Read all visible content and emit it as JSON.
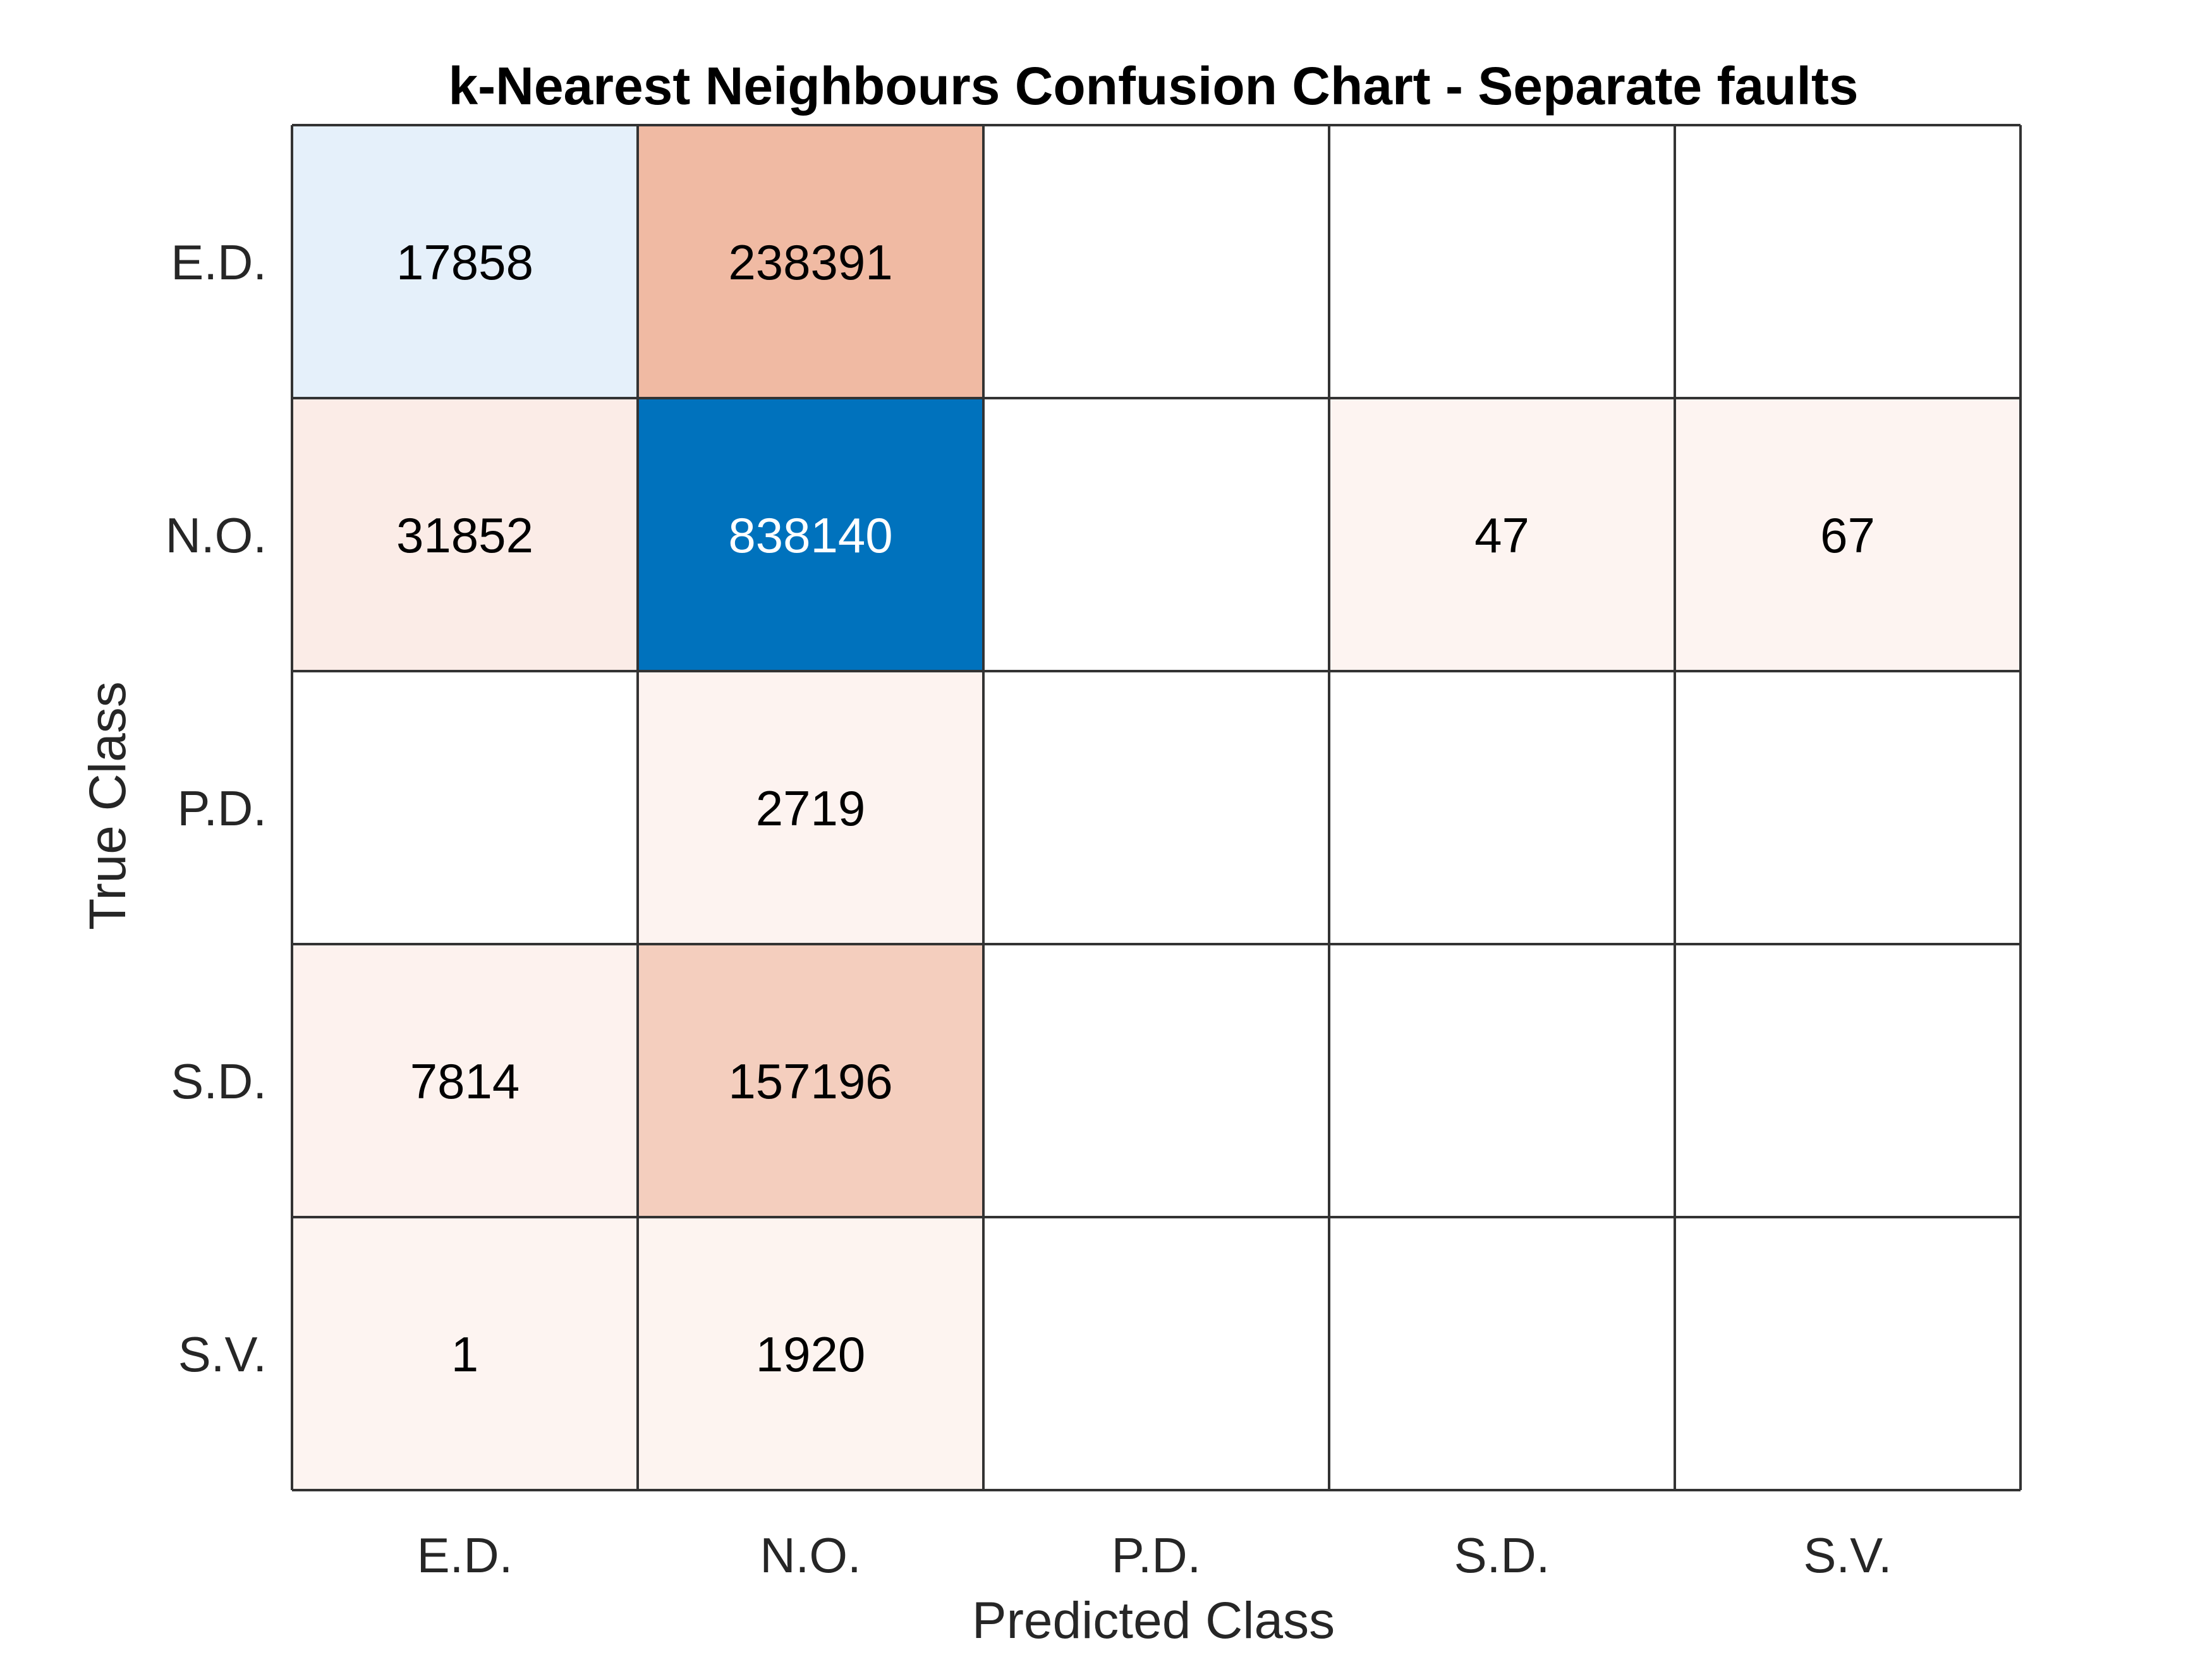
{
  "chart_data": {
    "type": "heatmap",
    "title": "k-Nearest Neighbours Confusion Chart - Separate faults",
    "xlabel": "Predicted Class",
    "ylabel": "True Class",
    "x_categories": [
      "E.D.",
      "N.O.",
      "P.D.",
      "S.D.",
      "S.V."
    ],
    "y_categories": [
      "E.D.",
      "N.O.",
      "P.D.",
      "S.D.",
      "S.V."
    ],
    "matrix": [
      [
        17858,
        238391,
        null,
        null,
        null
      ],
      [
        31852,
        838140,
        null,
        47,
        67
      ],
      [
        null,
        2719,
        null,
        null,
        null
      ],
      [
        7814,
        157196,
        null,
        null,
        null
      ],
      [
        1,
        1920,
        null,
        null,
        null
      ]
    ],
    "colors": {
      "diagonal_max": "#0072bd",
      "diagonal_low": "#eaf3fb",
      "offdiag_max": "#d95319",
      "offdiag_low": "#fdf4f1",
      "empty": "#ffffff",
      "grid": "#333333",
      "text_dark": "#000000",
      "text_light": "#ffffff",
      "label_text": "#262626"
    }
  }
}
